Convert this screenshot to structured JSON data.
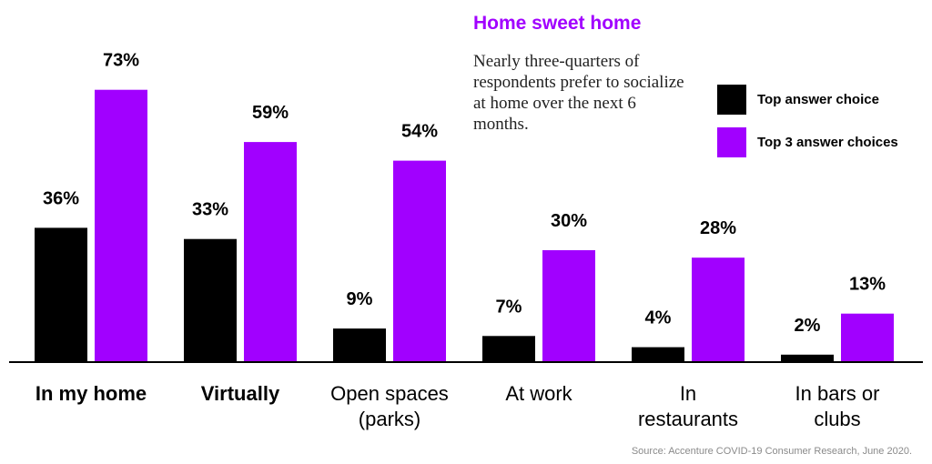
{
  "chart_data": {
    "type": "bar",
    "title": "Home sweet home",
    "subtitle": "Nearly three-quarters of respondents prefer to socialize at home over the next 6 months.",
    "categories": [
      [
        "In my home"
      ],
      [
        "Virtually"
      ],
      [
        "Open spaces",
        "(parks)"
      ],
      [
        "At work"
      ],
      [
        "In",
        "restaurants"
      ],
      [
        "In bars or",
        "clubs"
      ]
    ],
    "bold_categories": [
      0,
      1
    ],
    "series": [
      {
        "name": "Top answer choice",
        "color": "#000000",
        "values": [
          36,
          33,
          9,
          7,
          4,
          2
        ],
        "labels": [
          "36%",
          "33%",
          "9%",
          "7%",
          "4%",
          "2%"
        ]
      },
      {
        "name": "Top 3 answer choices",
        "color": "#a100ff",
        "values": [
          73,
          59,
          54,
          30,
          28,
          13
        ],
        "labels": [
          "73%",
          "59%",
          "54%",
          "30%",
          "28%",
          "13%"
        ]
      }
    ],
    "ylim": [
      0,
      100
    ],
    "grid": false,
    "legend_position": "top-right",
    "title_color": "#a100ff",
    "source": "Source: Accenture COVID-19 Consumer Research, June 2020."
  }
}
